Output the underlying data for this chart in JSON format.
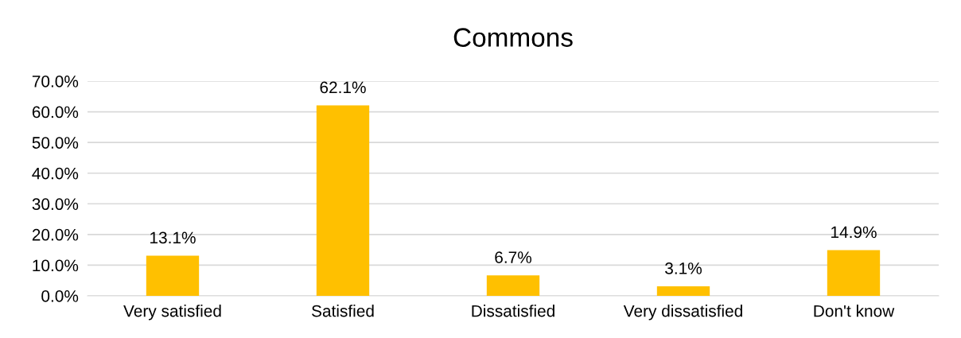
{
  "chart_data": {
    "type": "bar",
    "title": "Commons",
    "categories": [
      "Very satisfied",
      "Satisfied",
      "Dissatisfied",
      "Very dissatisfied",
      "Don't know"
    ],
    "values": [
      13.1,
      62.1,
      6.7,
      3.1,
      14.9
    ],
    "value_labels": [
      "13.1%",
      "62.1%",
      "6.7%",
      "3.1%",
      "14.9%"
    ],
    "color": "#ffc000",
    "ylim": [
      0,
      70
    ],
    "yticks": [
      {
        "value": 0,
        "label": "0.0%"
      },
      {
        "value": 10,
        "label": "10.0%"
      },
      {
        "value": 20,
        "label": "20.0%"
      },
      {
        "value": 30,
        "label": "30.0%"
      },
      {
        "value": 40,
        "label": "40.0%"
      },
      {
        "value": 50,
        "label": "50.0%"
      },
      {
        "value": 60,
        "label": "60.0%"
      },
      {
        "value": 70,
        "label": "70.0%"
      }
    ],
    "grid": "y"
  }
}
